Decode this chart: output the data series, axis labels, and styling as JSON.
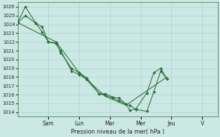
{
  "background_color": "#cce8e4",
  "grid_color": "#a8d4cc",
  "line_color": "#2d6e3e",
  "marker_color": "#2d6e3e",
  "xlabel": "Pression niveau de la mer( hPa )",
  "ylim": [
    1013.5,
    1026.5
  ],
  "yticks": [
    1014,
    1015,
    1016,
    1017,
    1018,
    1019,
    1020,
    1021,
    1022,
    1023,
    1024,
    1025,
    1026
  ],
  "x_day_labels": [
    "Sam",
    "Lun",
    "Mar",
    "Mer",
    "Jeu",
    "V"
  ],
  "x_day_positions": [
    2,
    4,
    6,
    8,
    10,
    12
  ],
  "xlim": [
    0,
    13
  ],
  "series": [
    {
      "x": [
        0,
        0.5,
        1.2,
        1.6,
        2.0,
        2.5,
        2.8,
        3.5,
        4.0,
        4.5,
        5.3,
        5.7,
        6.2,
        6.6,
        7.05,
        7.3,
        7.7,
        8.4,
        8.85,
        9.3,
        9.7
      ],
      "y": [
        1024.2,
        1025.0,
        1024.1,
        1023.7,
        1022.0,
        1021.9,
        1020.8,
        1019.0,
        1018.5,
        1017.9,
        1016.1,
        1016.1,
        1015.7,
        1015.6,
        1014.9,
        1014.8,
        1014.3,
        1014.1,
        1016.3,
        1018.7,
        1017.8
      ]
    },
    {
      "x": [
        0,
        0.5,
        1.2,
        1.6,
        2.0,
        2.5,
        2.8,
        3.5,
        4.0,
        4.5,
        5.3,
        5.7,
        6.2,
        6.6,
        7.05,
        7.3,
        7.7,
        8.4,
        8.85,
        9.3,
        9.7
      ],
      "y": [
        1024.2,
        1026.0,
        1024.1,
        1023.1,
        1022.0,
        1021.8,
        1021.0,
        1018.7,
        1018.3,
        1017.7,
        1016.1,
        1015.9,
        1015.6,
        1015.3,
        1014.9,
        1014.2,
        1014.4,
        1016.2,
        1018.5,
        1019.0,
        1017.8
      ]
    },
    {
      "x": [
        0,
        2.5,
        4.0,
        5.7,
        7.05,
        9.7
      ],
      "y": [
        1024.2,
        1022.0,
        1018.5,
        1015.8,
        1014.8,
        1018.0
      ]
    }
  ]
}
